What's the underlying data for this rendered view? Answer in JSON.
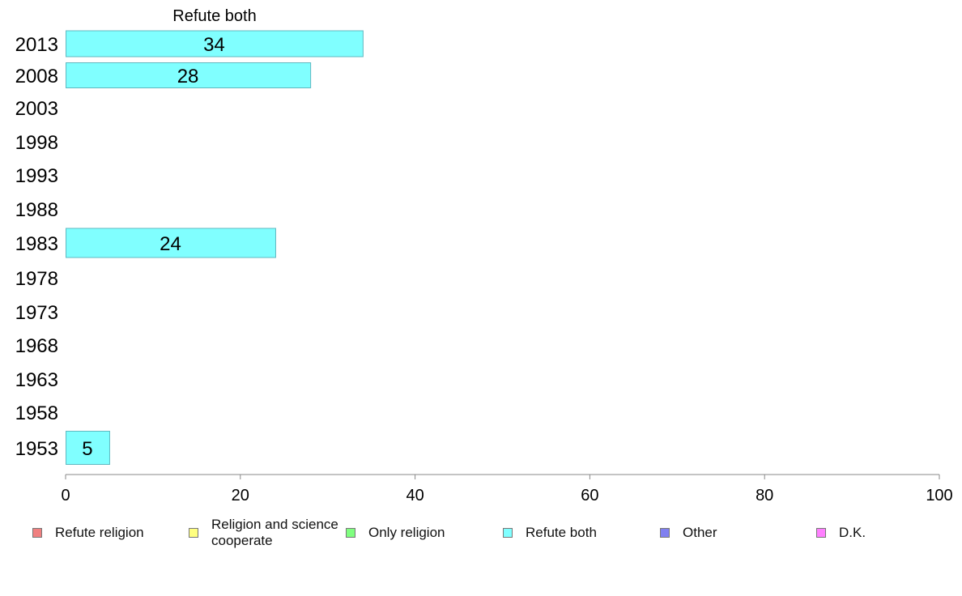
{
  "chart_data": {
    "type": "bar",
    "orientation": "horizontal",
    "title": "Refute both",
    "categories": [
      "2013",
      "2008",
      "2003",
      "1998",
      "1993",
      "1988",
      "1983",
      "1978",
      "1973",
      "1968",
      "1963",
      "1958",
      "1953"
    ],
    "series": [
      {
        "name": "Refute both",
        "color": "#80ffff",
        "values": [
          34,
          28,
          null,
          null,
          null,
          null,
          24,
          null,
          null,
          null,
          null,
          null,
          5
        ],
        "labels": [
          "34",
          "28",
          "",
          "",
          "",
          "",
          "24",
          "",
          "",
          "",
          "",
          "",
          "5"
        ]
      }
    ],
    "xlim": [
      0,
      100
    ],
    "xticks": [
      "0",
      "20",
      "40",
      "60",
      "80",
      "100"
    ],
    "grid": false,
    "legend_position": "bottom"
  },
  "legend": [
    {
      "label": "Refute religion",
      "color": "#f08080"
    },
    {
      "label": "Religion and science cooperate",
      "color": "#ffff80"
    },
    {
      "label": "Only religion",
      "color": "#80ff80"
    },
    {
      "label": "Refute both",
      "color": "#80ffff"
    },
    {
      "label": "Other",
      "color": "#8080f0"
    },
    {
      "label": "D.K.",
      "color": "#ff80ff"
    }
  ]
}
